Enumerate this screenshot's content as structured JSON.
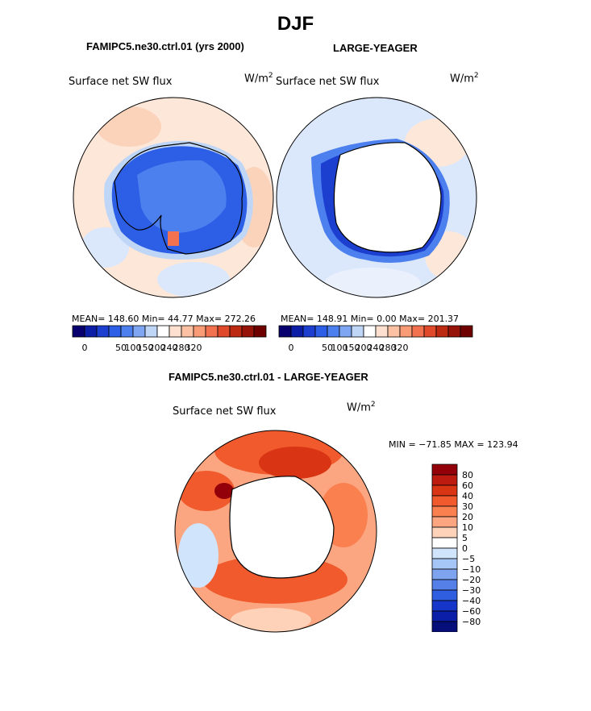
{
  "page": {
    "title": "DJF"
  },
  "colors": {
    "absolute_scale": [
      "#08006e",
      "#0c1ea6",
      "#1c3fd0",
      "#2c5ee6",
      "#4c80ee",
      "#7ea6f2",
      "#bfd6f7",
      "#ffffff",
      "#fde0cf",
      "#fbc1a2",
      "#f99c76",
      "#f27250",
      "#e04a2a",
      "#bd2a12",
      "#96130a",
      "#6e0000"
    ],
    "difference_scale": [
      "#94000a",
      "#bd1a10",
      "#d93515",
      "#f05a2c",
      "#fa8050",
      "#fba680",
      "#fdd2b8",
      "#ffffff",
      "#d0e4fb",
      "#a6c6f7",
      "#7ea4ef",
      "#5580e8",
      "#2f5ee0",
      "#1536c8",
      "#0a1ea8",
      "#060e7a"
    ],
    "land_fill": "#ffffff",
    "coast": "#000000"
  },
  "chart_data": [
    {
      "type": "heatmap",
      "projection": "south-polar-stereographic",
      "case": "FAMIPC5.ne30.ctrl.01 (yrs 2000)",
      "variable": "Surface net SW flux",
      "units": "W/m",
      "units_exp": "2",
      "stats": {
        "mean": "148.60",
        "min": "44.77",
        "max": "272.26"
      },
      "stats_text": "MEAN= 148.60   Min=   44.77   Max= 272.26",
      "colorbar": {
        "orientation": "horizontal",
        "tick_labels": [
          "0",
          "50",
          "100",
          "150",
          "200",
          "240",
          "280",
          "320"
        ]
      },
      "notes": "Antarctic continent colored deep blue (low SW flux); ocean mostly light peach"
    },
    {
      "type": "heatmap",
      "projection": "south-polar-stereographic",
      "case": "LARGE-YEAGER",
      "variable": "Surface net SW flux",
      "units": "W/m",
      "units_exp": "2",
      "stats": {
        "mean": "148.91",
        "min": "0.00",
        "max": "201.37"
      },
      "stats_text": "MEAN= 148.91   Min=    0.00   Max= 201.37",
      "colorbar": {
        "orientation": "horizontal",
        "tick_labels": [
          "0",
          "50",
          "100",
          "150",
          "200",
          "240",
          "280",
          "320"
        ]
      },
      "notes": "Land masked white; blue band along Antarctic coast; light blue ocean"
    },
    {
      "type": "heatmap",
      "projection": "south-polar-stereographic",
      "case": "FAMIPC5.ne30.ctrl.01 - LARGE-YEAGER",
      "variable": "Surface net SW flux",
      "units": "W/m",
      "units_exp": "2",
      "stats": {
        "min": "-71.85",
        "max": "123.94"
      },
      "stats_text": "MIN = −71.85 MAX = 123.94",
      "colorbar": {
        "orientation": "vertical",
        "tick_labels": [
          "80",
          "60",
          "40",
          "30",
          "20",
          "10",
          "5",
          "0",
          "−5",
          "−10",
          "−20",
          "−30",
          "−40",
          "−60",
          "−80"
        ]
      },
      "notes": "Mostly positive (red) differences around Antarctica; land masked white"
    }
  ]
}
